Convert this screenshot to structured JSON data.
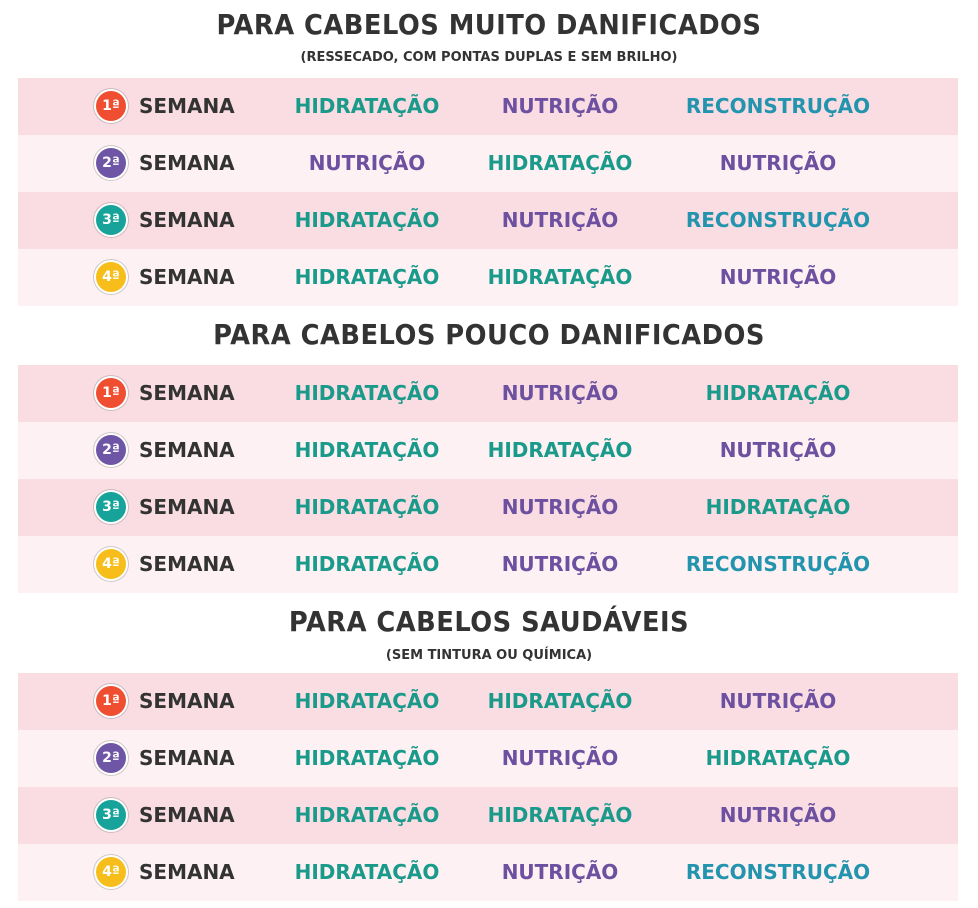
{
  "colors": {
    "hidratacao": "#1a9a8a",
    "nutricao": "#6d50a0",
    "reconstrucao": "#2394ad",
    "badges": [
      "#ef4e31",
      "#6f55a5",
      "#17a39a",
      "#f7bd1a"
    ]
  },
  "week_label": "SEMANA",
  "week_numbers": [
    "1ª",
    "2ª",
    "3ª",
    "4ª"
  ],
  "sections": [
    {
      "title": "PARA CABELOS MUITO DANIFICADOS",
      "subtitle": "(RESSECADO, COM PONTAS DUPLAS E SEM BRILHO)",
      "rows": [
        [
          "HIDRATAÇÃO",
          "NUTRIÇÃO",
          "RECONSTRUÇÃO"
        ],
        [
          "NUTRIÇÃO",
          "HIDRATAÇÃO",
          "NUTRIÇÃO"
        ],
        [
          "HIDRATAÇÃO",
          "NUTRIÇÃO",
          "RECONSTRUÇÃO"
        ],
        [
          "HIDRATAÇÃO",
          "HIDRATAÇÃO",
          "NUTRIÇÃO"
        ]
      ]
    },
    {
      "title": "PARA CABELOS POUCO DANIFICADOS",
      "subtitle": "",
      "rows": [
        [
          "HIDRATAÇÃO",
          "NUTRIÇÃO",
          "HIDRATAÇÃO"
        ],
        [
          "HIDRATAÇÃO",
          "HIDRATAÇÃO",
          "NUTRIÇÃO"
        ],
        [
          "HIDRATAÇÃO",
          "NUTRIÇÃO",
          "HIDRATAÇÃO"
        ],
        [
          "HIDRATAÇÃO",
          "NUTRIÇÃO",
          "RECONSTRUÇÃO"
        ]
      ]
    },
    {
      "title": "PARA CABELOS SAUDÁVEIS",
      "subtitle": "(SEM TINTURA OU QUÍMICA)",
      "rows": [
        [
          "HIDRATAÇÃO",
          "HIDRATAÇÃO",
          "NUTRIÇÃO"
        ],
        [
          "HIDRATAÇÃO",
          "NUTRIÇÃO",
          "HIDRATAÇÃO"
        ],
        [
          "HIDRATAÇÃO",
          "HIDRATAÇÃO",
          "NUTRIÇÃO"
        ],
        [
          "HIDRATAÇÃO",
          "NUTRIÇÃO",
          "RECONSTRUÇÃO"
        ]
      ]
    }
  ]
}
